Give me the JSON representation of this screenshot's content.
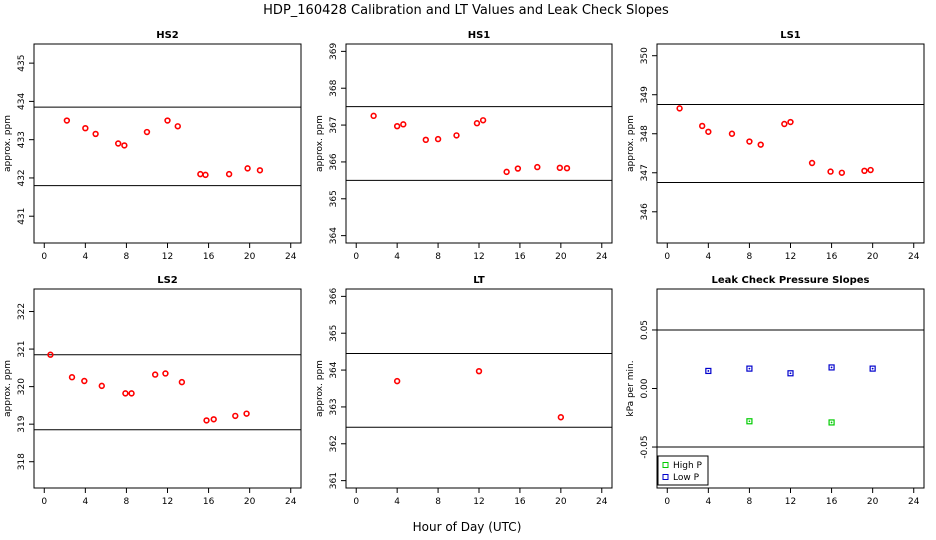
{
  "figure": {
    "title": "HDP_160428  Calibration and LT Values and Leak Check Slopes",
    "xlabel": "Hour of Day (UTC)"
  },
  "chart_data": [
    {
      "type": "scatter",
      "title": "HS2",
      "ylabel": "approx. ppm",
      "xlim": [
        -1,
        25
      ],
      "xticks": [
        0,
        4,
        8,
        12,
        16,
        20,
        24
      ],
      "ylim": [
        430.3,
        435.5
      ],
      "yticks": [
        431,
        432,
        433,
        434,
        435
      ],
      "hlines": [
        433.85,
        431.8
      ],
      "series": [
        {
          "color": "#ff0000",
          "marker": "circle",
          "x": [
            2.2,
            4.0,
            5.0,
            7.2,
            7.8,
            10.0,
            12.0,
            13.0,
            15.2,
            15.7,
            18.0,
            19.8,
            21.0
          ],
          "y": [
            433.5,
            433.3,
            433.15,
            432.9,
            432.85,
            433.2,
            433.5,
            433.35,
            432.1,
            432.08,
            432.1,
            432.25,
            432.2
          ]
        }
      ]
    },
    {
      "type": "scatter",
      "title": "HS1",
      "ylabel": "approx. ppm",
      "xlim": [
        -1,
        25
      ],
      "xticks": [
        0,
        4,
        8,
        12,
        16,
        20,
        24
      ],
      "ylim": [
        363.8,
        369.2
      ],
      "yticks": [
        364,
        365,
        366,
        367,
        368,
        369
      ],
      "hlines": [
        367.5,
        365.5
      ],
      "series": [
        {
          "color": "#ff0000",
          "marker": "circle",
          "x": [
            1.7,
            4.0,
            4.6,
            6.8,
            8.0,
            9.8,
            11.8,
            12.4,
            14.7,
            15.8,
            17.7,
            19.9,
            20.6
          ],
          "y": [
            367.25,
            366.97,
            367.02,
            366.6,
            366.62,
            366.72,
            367.05,
            367.13,
            365.73,
            365.82,
            365.86,
            365.84,
            365.83
          ]
        }
      ]
    },
    {
      "type": "scatter",
      "title": "LS1",
      "ylabel": "approx. ppm",
      "xlim": [
        -1,
        25
      ],
      "xticks": [
        0,
        4,
        8,
        12,
        16,
        20,
        24
      ],
      "ylim": [
        345.2,
        350.3
      ],
      "yticks": [
        346,
        347,
        348,
        349,
        350
      ],
      "hlines": [
        348.75,
        346.75
      ],
      "series": [
        {
          "color": "#ff0000",
          "marker": "circle",
          "x": [
            1.2,
            3.4,
            4.0,
            6.3,
            8.0,
            9.1,
            11.4,
            12.0,
            14.1,
            15.9,
            17.0,
            19.2,
            19.8
          ],
          "y": [
            348.65,
            348.2,
            348.05,
            348.0,
            347.8,
            347.72,
            348.25,
            348.3,
            347.25,
            347.03,
            347.0,
            347.05,
            347.07
          ]
        }
      ]
    },
    {
      "type": "scatter",
      "title": "LS2",
      "ylabel": "approx. ppm",
      "xlim": [
        -1,
        25
      ],
      "xticks": [
        0,
        4,
        8,
        12,
        16,
        20,
        24
      ],
      "ylim": [
        317.3,
        322.6
      ],
      "yticks": [
        318,
        319,
        320,
        321,
        322
      ],
      "hlines": [
        320.85,
        318.85
      ],
      "series": [
        {
          "color": "#ff0000",
          "marker": "circle",
          "x": [
            0.6,
            2.7,
            3.9,
            5.6,
            7.9,
            8.5,
            10.8,
            11.8,
            13.4,
            15.8,
            16.5,
            18.6,
            19.7
          ],
          "y": [
            320.85,
            320.25,
            320.15,
            320.02,
            319.82,
            319.82,
            320.32,
            320.35,
            320.12,
            319.1,
            319.13,
            319.22,
            319.28
          ]
        }
      ]
    },
    {
      "type": "scatter",
      "title": "LT",
      "ylabel": "approx. ppm",
      "xlim": [
        -1,
        25
      ],
      "xticks": [
        0,
        4,
        8,
        12,
        16,
        20,
        24
      ],
      "ylim": [
        360.8,
        366.2
      ],
      "yticks": [
        361,
        362,
        363,
        364,
        365,
        366
      ],
      "hlines": [
        364.45,
        362.45
      ],
      "series": [
        {
          "color": "#ff0000",
          "marker": "circle",
          "x": [
            4.0,
            12.0,
            20.0
          ],
          "y": [
            363.7,
            363.97,
            362.72
          ]
        }
      ]
    },
    {
      "type": "scatter",
      "title": "Leak Check Pressure Slopes",
      "ylabel": "kPa per min.",
      "xlim": [
        -1,
        25
      ],
      "xticks": [
        0,
        4,
        8,
        12,
        16,
        20,
        24
      ],
      "ylim": [
        -0.085,
        0.085
      ],
      "yticks": [
        -0.05,
        0.0,
        0.05
      ],
      "ytick_labels": [
        "-0.05",
        "0.00",
        "0.05"
      ],
      "hlines": [
        0.05,
        -0.05
      ],
      "legend": {
        "position": "bottom-left"
      },
      "series": [
        {
          "name": "High P",
          "color": "#00cc00",
          "marker": "square-dot",
          "x": [
            8.0,
            16.0
          ],
          "y": [
            -0.028,
            -0.029
          ]
        },
        {
          "name": "Low P",
          "color": "#0000cc",
          "marker": "square-dot",
          "x": [
            4.0,
            8.0,
            12.0,
            16.0,
            20.0
          ],
          "y": [
            0.015,
            0.017,
            0.013,
            0.018,
            0.017
          ]
        }
      ]
    }
  ]
}
